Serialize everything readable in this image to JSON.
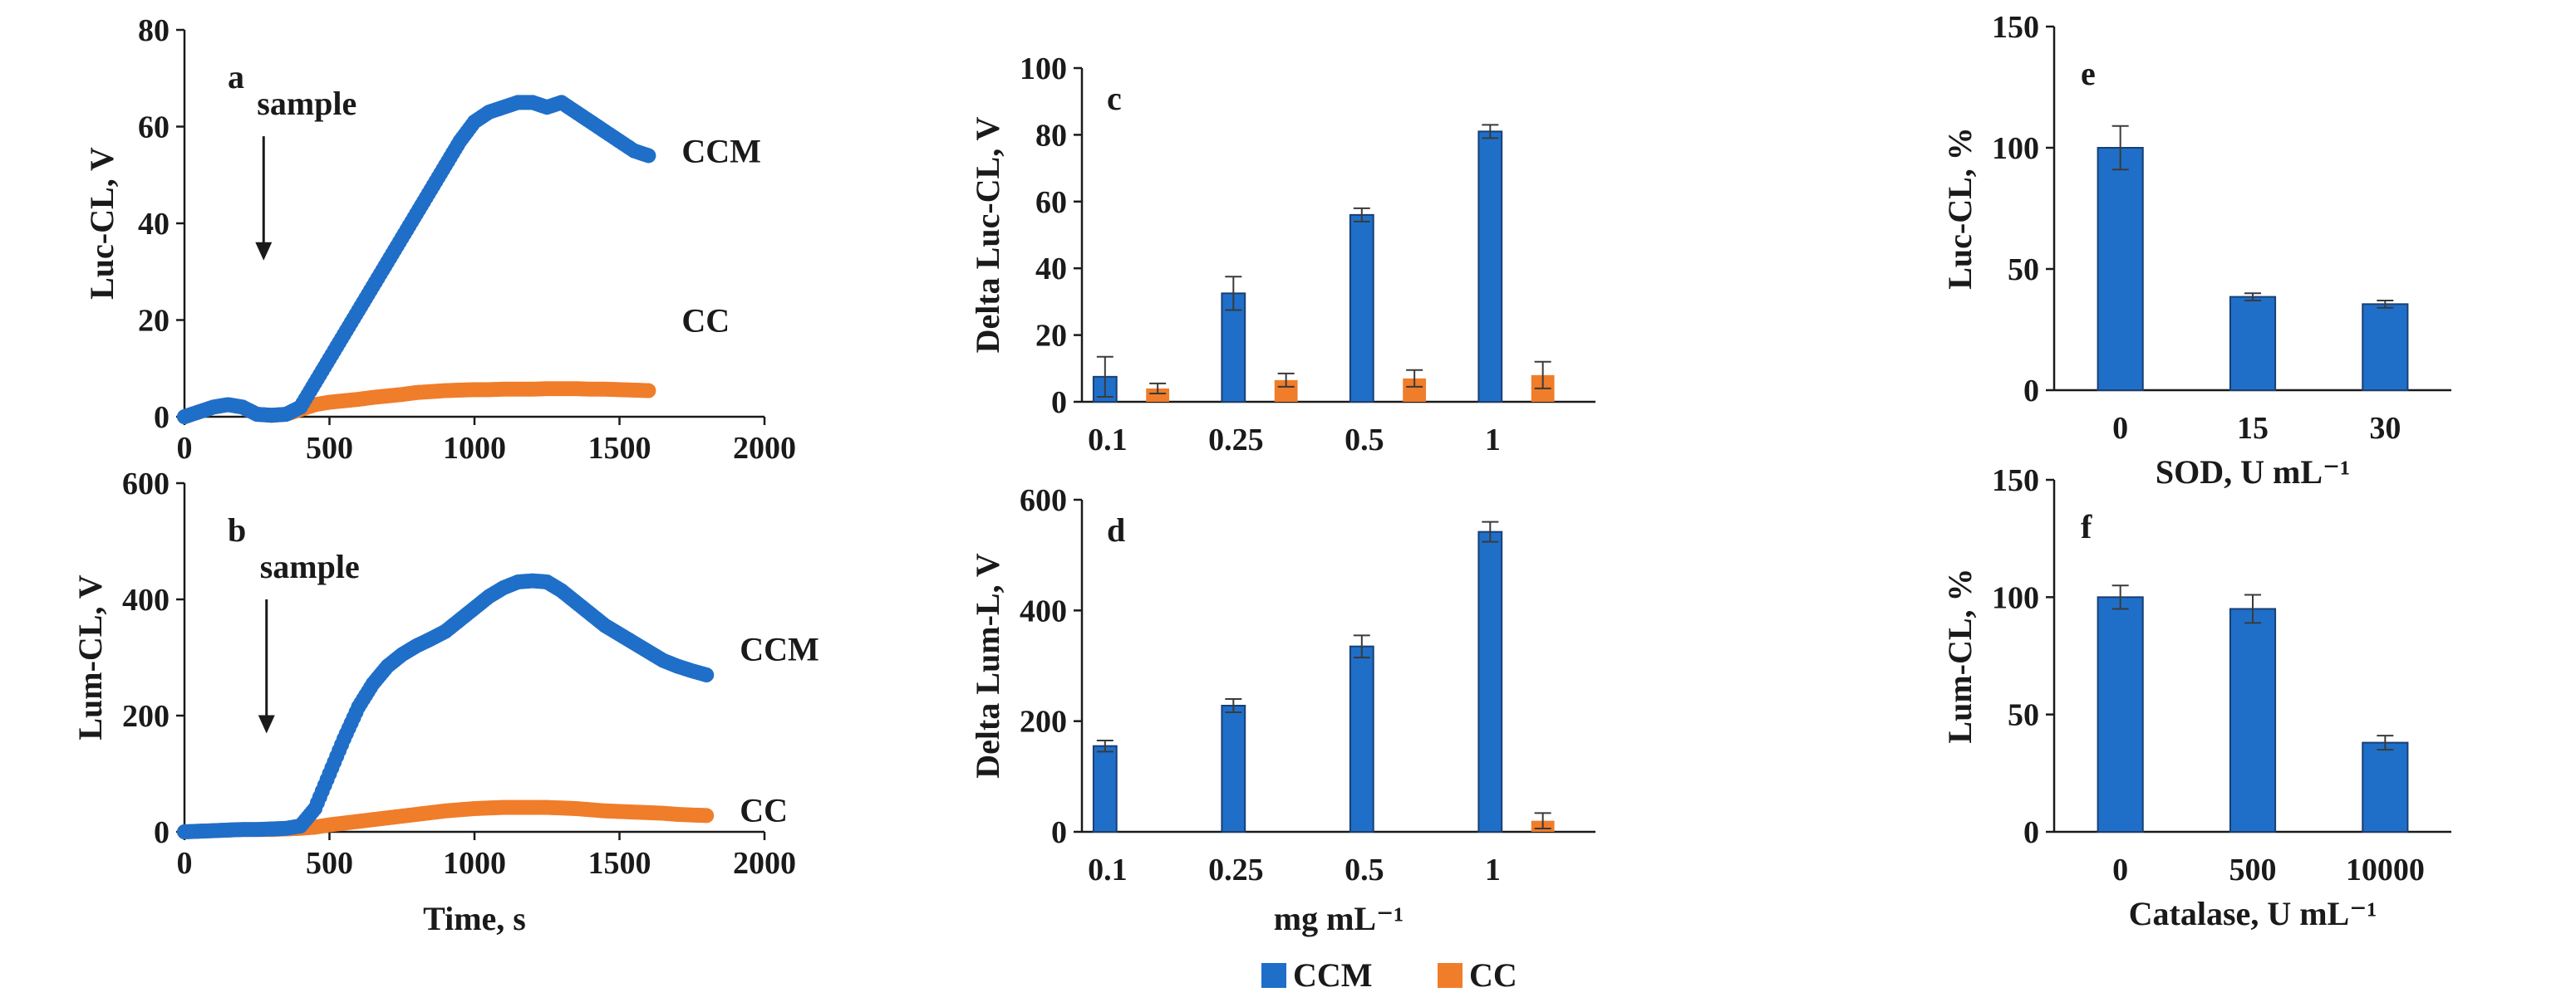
{
  "colors": {
    "ccm": "#1f6fc9",
    "cc": "#f07d2a",
    "axis": "#1a1a1a",
    "bar_edge": "#1a3f73"
  },
  "legend": {
    "ccm": "CCM",
    "cc": "CC"
  },
  "chart_data": [
    {
      "id": "a",
      "type": "scatter",
      "panel_letter": "a",
      "xlabel": "",
      "ylabel": "Luc-CL, V",
      "xlim": [
        0,
        2000
      ],
      "ylim": [
        0,
        80
      ],
      "xticks": [
        "0",
        "500",
        "1000",
        "1500",
        "2000"
      ],
      "yticks": [
        "0",
        "20",
        "40",
        "60",
        "80"
      ],
      "annotation": "sample",
      "arrow_x": 250,
      "arrow_y_from": 58,
      "arrow_y_to": 33,
      "series": [
        {
          "name": "CCM",
          "label": "CCM",
          "label_y": 55,
          "x": [
            0,
            50,
            100,
            150,
            200,
            250,
            300,
            350,
            400,
            450,
            500,
            550,
            600,
            650,
            700,
            750,
            800,
            850,
            900,
            950,
            1000,
            1050,
            1100,
            1150,
            1200,
            1250,
            1300,
            1350,
            1400,
            1450,
            1500,
            1550,
            1600
          ],
          "y": [
            0,
            1,
            2,
            2.5,
            2,
            0.5,
            0.3,
            0.5,
            2,
            7,
            12,
            17,
            22,
            27,
            32,
            37,
            42,
            47,
            52,
            57,
            61,
            63,
            64,
            65,
            65,
            64,
            65,
            63,
            61,
            59,
            57,
            55,
            54
          ]
        },
        {
          "name": "CC",
          "label": "CC",
          "label_y": 20,
          "x": [
            0,
            50,
            100,
            150,
            200,
            250,
            300,
            350,
            400,
            450,
            500,
            550,
            600,
            650,
            700,
            750,
            800,
            850,
            900,
            950,
            1000,
            1050,
            1100,
            1150,
            1200,
            1250,
            1300,
            1350,
            1400,
            1450,
            1500,
            1550,
            1600
          ],
          "y": [
            0,
            1,
            2,
            2.5,
            2,
            0.5,
            0.3,
            0.5,
            1.5,
            2.5,
            3,
            3.3,
            3.6,
            4,
            4.3,
            4.6,
            5,
            5.2,
            5.4,
            5.5,
            5.6,
            5.6,
            5.7,
            5.7,
            5.7,
            5.8,
            5.8,
            5.8,
            5.7,
            5.7,
            5.6,
            5.5,
            5.4
          ]
        }
      ]
    },
    {
      "id": "b",
      "type": "scatter",
      "panel_letter": "b",
      "xlabel": "Time, s",
      "ylabel": "Lum-CL, V",
      "xlim": [
        0,
        2000
      ],
      "ylim": [
        0,
        600
      ],
      "xticks": [
        "0",
        "500",
        "1000",
        "1500",
        "2000"
      ],
      "yticks": [
        "0",
        "200",
        "400",
        "600"
      ],
      "annotation": "sample",
      "arrow_x": 260,
      "arrow_y_from": 400,
      "arrow_y_to": 175,
      "series": [
        {
          "name": "CCM",
          "label": "CCM",
          "label_y": 315,
          "x": [
            0,
            50,
            100,
            150,
            200,
            250,
            300,
            350,
            400,
            450,
            500,
            550,
            600,
            650,
            700,
            750,
            800,
            850,
            900,
            950,
            1000,
            1050,
            1100,
            1150,
            1200,
            1250,
            1300,
            1350,
            1400,
            1450,
            1500,
            1550,
            1600,
            1650,
            1700,
            1750,
            1800
          ],
          "y": [
            0,
            1,
            2,
            3,
            4,
            4,
            5,
            6,
            10,
            40,
            100,
            160,
            215,
            255,
            285,
            305,
            320,
            332,
            345,
            365,
            385,
            405,
            420,
            430,
            432,
            430,
            415,
            395,
            375,
            355,
            340,
            325,
            310,
            295,
            285,
            277,
            270
          ]
        },
        {
          "name": "CC",
          "label": "CC",
          "label_y": 38,
          "x": [
            0,
            50,
            100,
            150,
            200,
            250,
            300,
            350,
            400,
            450,
            500,
            550,
            600,
            650,
            700,
            750,
            800,
            850,
            900,
            950,
            1000,
            1050,
            1100,
            1150,
            1200,
            1250,
            1300,
            1350,
            1400,
            1450,
            1500,
            1550,
            1600,
            1650,
            1700,
            1750,
            1800
          ],
          "y": [
            0,
            1,
            2,
            3,
            4,
            4,
            4,
            5,
            6,
            8,
            12,
            15,
            18,
            21,
            24,
            27,
            30,
            33,
            36,
            38,
            40,
            41,
            42,
            42,
            42,
            42,
            41,
            40,
            38,
            36,
            35,
            34,
            33,
            32,
            30,
            29,
            28
          ]
        }
      ]
    },
    {
      "id": "c",
      "type": "bar",
      "panel_letter": "c",
      "xlabel": "",
      "ylabel": "Delta Luc-CL, V",
      "ylim": [
        0,
        100
      ],
      "yticks": [
        "0",
        "20",
        "40",
        "60",
        "80",
        "100"
      ],
      "categories": [
        "0.1",
        "0.25",
        "0.5",
        "1"
      ],
      "series": [
        {
          "name": "CCM",
          "values": [
            7.5,
            32.5,
            56,
            81
          ],
          "errors": [
            6,
            5,
            2,
            2
          ]
        },
        {
          "name": "CC",
          "values": [
            4,
            6.5,
            7,
            8
          ],
          "errors": [
            1.5,
            2,
            2.5,
            4
          ]
        }
      ]
    },
    {
      "id": "d",
      "type": "bar",
      "panel_letter": "d",
      "xlabel": "mg mL⁻¹",
      "ylabel": "Delta Lum-L, V",
      "ylim": [
        0,
        600
      ],
      "yticks": [
        "0",
        "200",
        "400",
        "600"
      ],
      "categories": [
        "0.1",
        "0.25",
        "0.5",
        "1"
      ],
      "series": [
        {
          "name": "CCM",
          "values": [
            155,
            228,
            335,
            542
          ],
          "errors": [
            10,
            12,
            20,
            18
          ]
        },
        {
          "name": "CC",
          "values": [
            0,
            0,
            0,
            20
          ],
          "errors": [
            0,
            0,
            0,
            14
          ]
        }
      ]
    },
    {
      "id": "e",
      "type": "bar",
      "panel_letter": "e",
      "xlabel": "SOD, U mL⁻¹",
      "ylabel": "Luc-CL, %",
      "ylim": [
        0,
        150
      ],
      "yticks": [
        "0",
        "50",
        "100",
        "150"
      ],
      "categories": [
        "0",
        "15",
        "30"
      ],
      "series": [
        {
          "name": "CCM",
          "values": [
            100,
            38.5,
            35.5
          ],
          "errors": [
            9,
            1.5,
            1.5
          ]
        }
      ]
    },
    {
      "id": "f",
      "type": "bar",
      "panel_letter": "f",
      "xlabel": "Catalase, U mL⁻¹",
      "ylabel": "Lum-CL, %",
      "ylim": [
        0,
        150
      ],
      "yticks": [
        "0",
        "50",
        "100",
        "150"
      ],
      "categories": [
        "0",
        "500",
        "10000"
      ],
      "series": [
        {
          "name": "CCM",
          "values": [
            100,
            95,
            38
          ],
          "errors": [
            5,
            6,
            3
          ]
        }
      ]
    }
  ]
}
